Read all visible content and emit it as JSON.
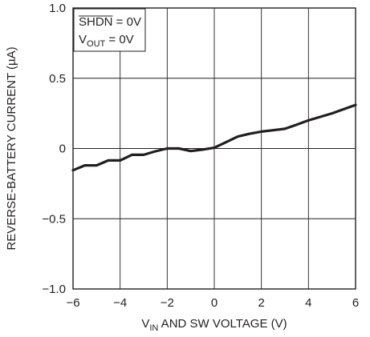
{
  "chart_data": {
    "type": "line",
    "title": "",
    "xlabel": {
      "pre": "V",
      "sub": "IN",
      "post": " AND SW VOLTAGE (V)"
    },
    "ylabel": "REVERSE-BATTERY CURRENT (µA)",
    "xlim": [
      -6,
      6
    ],
    "ylim": [
      -1.0,
      1.0
    ],
    "grid": true,
    "x_ticks": [
      -6,
      -4,
      -2,
      0,
      2,
      4,
      6
    ],
    "x_tick_labels": [
      "−6",
      "−4",
      "−2",
      "0",
      "2",
      "4",
      "6"
    ],
    "y_ticks": [
      -1.0,
      -0.5,
      0,
      0.5,
      1.0
    ],
    "y_tick_labels": [
      "−1.0",
      "−0.5",
      "0",
      "0.5",
      "1.0"
    ],
    "annotations": {
      "line1": {
        "overlined": "SHDN",
        "rest": " = 0V"
      },
      "line2": {
        "pre": "V",
        "sub": "OUT",
        "post": " = 0V"
      }
    },
    "series": [
      {
        "color": "#231f20",
        "x": [
          -6,
          -5.5,
          -5,
          -4.5,
          -4,
          -3.5,
          -3,
          -2.5,
          -2,
          -1.5,
          -1,
          -0.5,
          0,
          0.5,
          1,
          1.5,
          2,
          2.5,
          3,
          3.5,
          4,
          4.5,
          5,
          5.5,
          6
        ],
        "y": [
          -0.155,
          -0.12,
          -0.12,
          -0.085,
          -0.085,
          -0.045,
          -0.045,
          -0.02,
          0.0,
          0.0,
          -0.018,
          -0.008,
          0.005,
          0.045,
          0.085,
          0.105,
          0.12,
          0.13,
          0.14,
          0.17,
          0.2,
          0.225,
          0.25,
          0.28,
          0.31
        ]
      }
    ]
  }
}
